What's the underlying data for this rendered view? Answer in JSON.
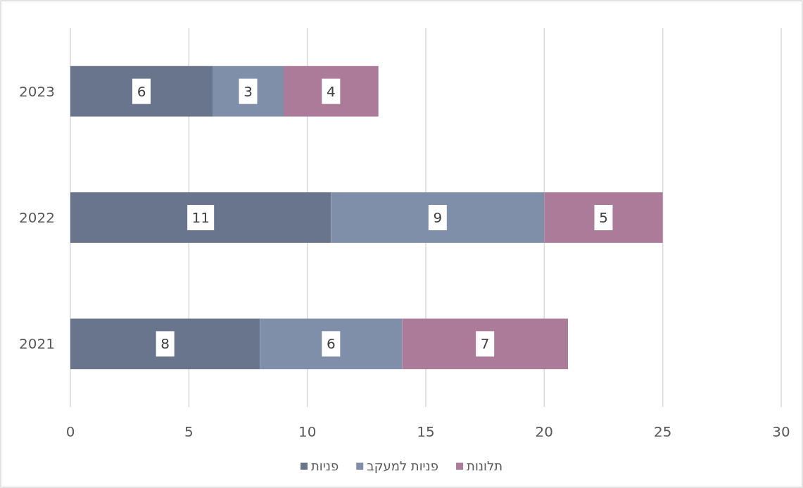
{
  "chart_data": {
    "type": "bar",
    "orientation": "horizontal",
    "stacked": true,
    "categories": [
      "2023",
      "2022",
      "2021"
    ],
    "series": [
      {
        "name": "פניות",
        "color": "#68758c",
        "values": [
          6,
          11,
          8
        ]
      },
      {
        "name": "פניות למעקב",
        "color": "#7f8faa",
        "values": [
          3,
          9,
          6
        ]
      },
      {
        "name": "תלונות",
        "color": "#ad7b9a",
        "values": [
          4,
          5,
          7
        ]
      }
    ],
    "xlim": [
      0,
      30
    ],
    "xticks": [
      0,
      5,
      10,
      15,
      20,
      25,
      30
    ],
    "grid": "x",
    "legend": "bottom",
    "data_labels": true
  }
}
